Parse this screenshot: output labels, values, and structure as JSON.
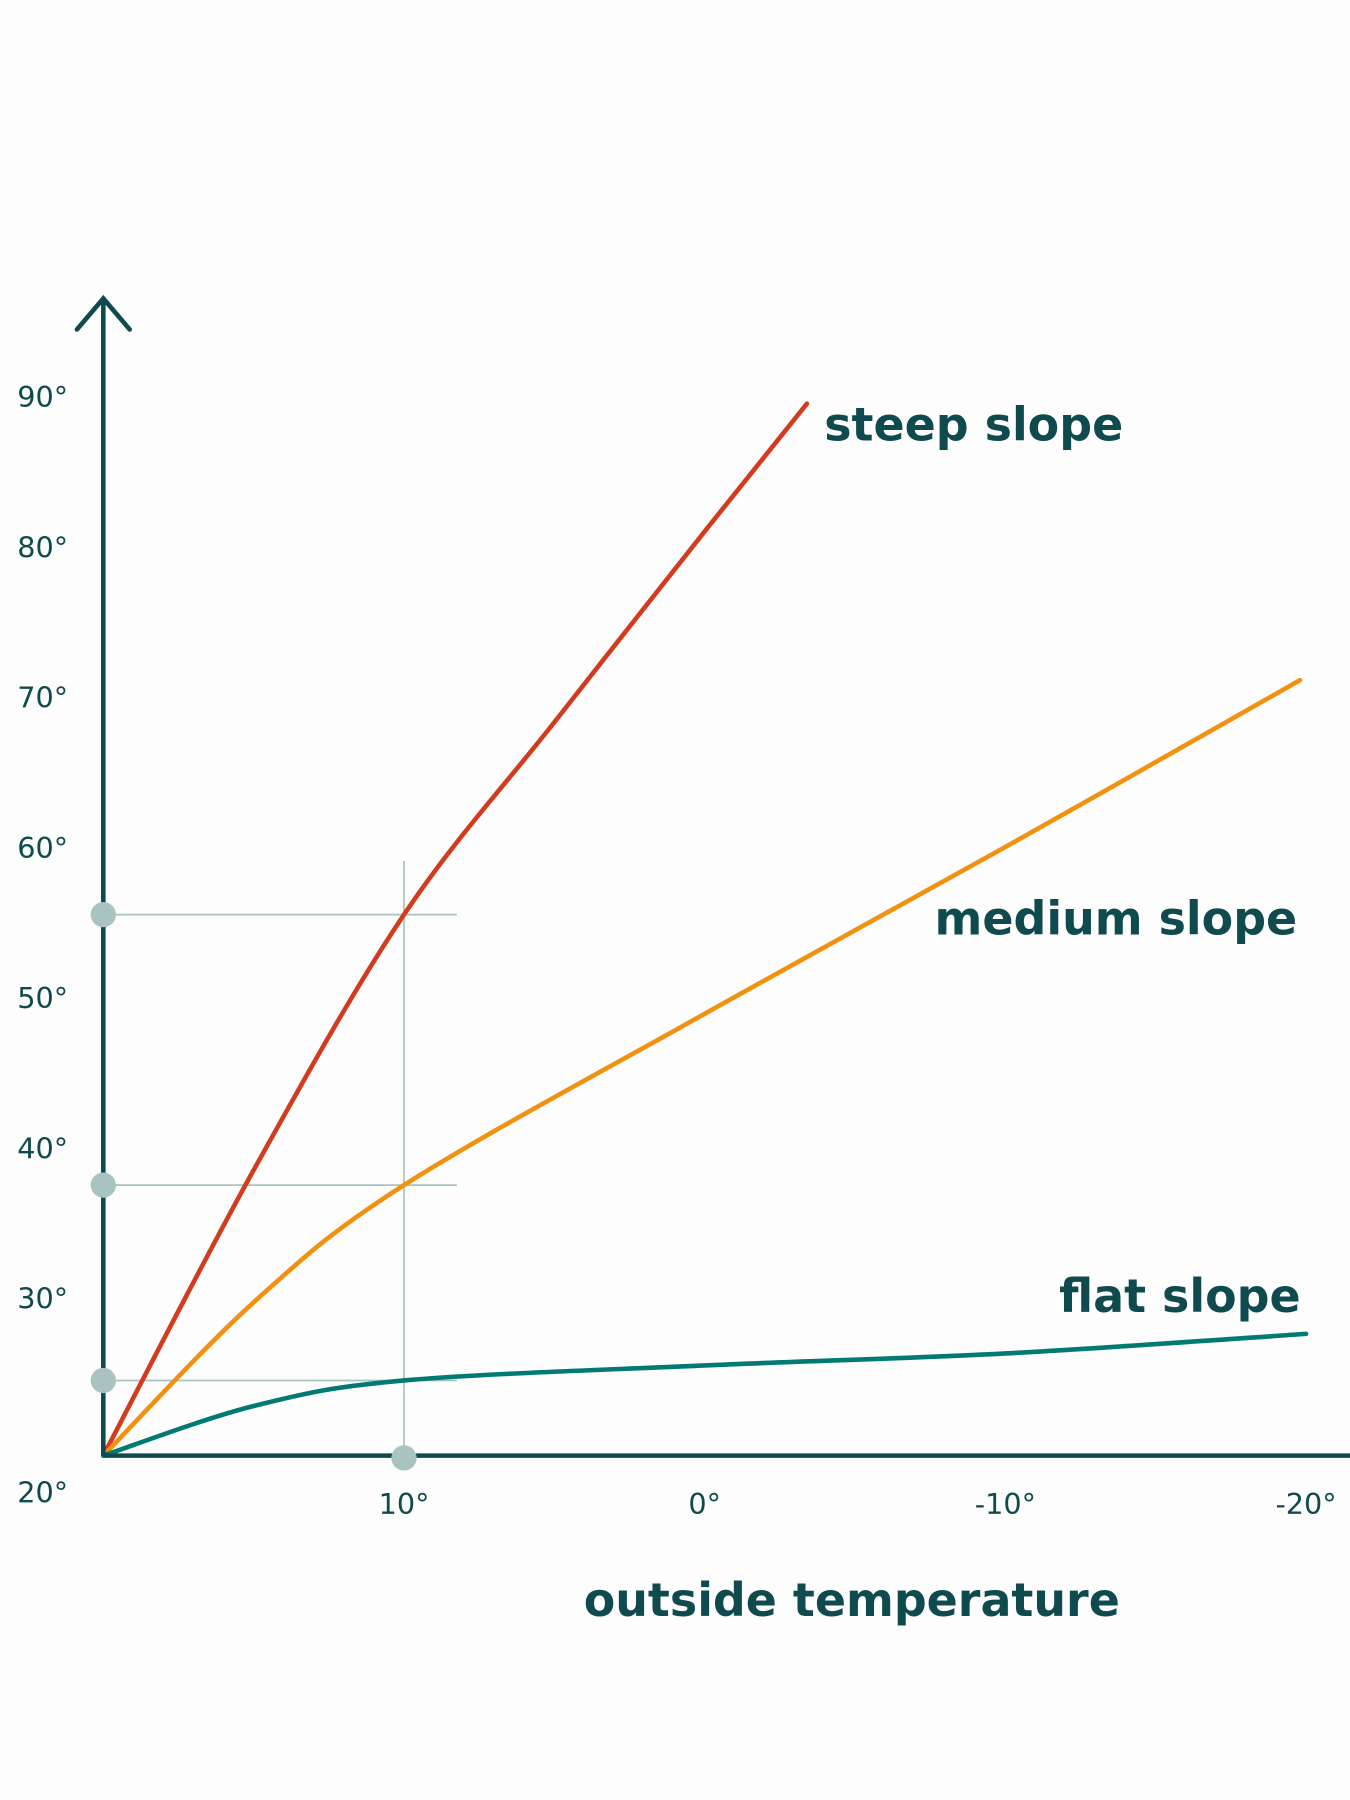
{
  "chart_data": {
    "type": "line",
    "x_label": "outside temperature",
    "xlim": [
      20,
      -21.5
    ],
    "ylim": [
      20,
      97
    ],
    "xticks": [
      {
        "value": 10,
        "label": "10°"
      },
      {
        "value": 0,
        "label": "0°"
      },
      {
        "value": -10,
        "label": "-10°"
      },
      {
        "value": -20,
        "label": "-20°"
      }
    ],
    "yticks": [
      {
        "value": 20,
        "label": "20°"
      },
      {
        "value": 30,
        "label": "30°"
      },
      {
        "value": 40,
        "label": "40°"
      },
      {
        "value": 50,
        "label": "50°"
      },
      {
        "value": 60,
        "label": "60°"
      },
      {
        "value": 70,
        "label": "70°"
      },
      {
        "value": 80,
        "label": "80°"
      },
      {
        "value": 90,
        "label": "90°"
      }
    ],
    "reference": {
      "x": 10,
      "y": [
        56,
        38,
        25
      ]
    },
    "series": [
      {
        "name": "steep slope",
        "color": "#d23b1d",
        "x": [
          20,
          15,
          10,
          5,
          0,
          -3.4
        ],
        "values": [
          20,
          39,
          56,
          68.8,
          81.5,
          90
        ]
      },
      {
        "name": "medium slope",
        "color": "#f2910f",
        "x": [
          20,
          15,
          10,
          0,
          -10,
          -19.8
        ],
        "values": [
          20,
          30.2,
          38,
          49.4,
          60.5,
          71.6
        ]
      },
      {
        "name": "flat slope",
        "color": "#017a74",
        "x": [
          20,
          15,
          10,
          0,
          -10,
          -20
        ],
        "values": [
          20,
          23.3,
          25,
          26,
          26.8,
          28.1
        ]
      }
    ]
  }
}
